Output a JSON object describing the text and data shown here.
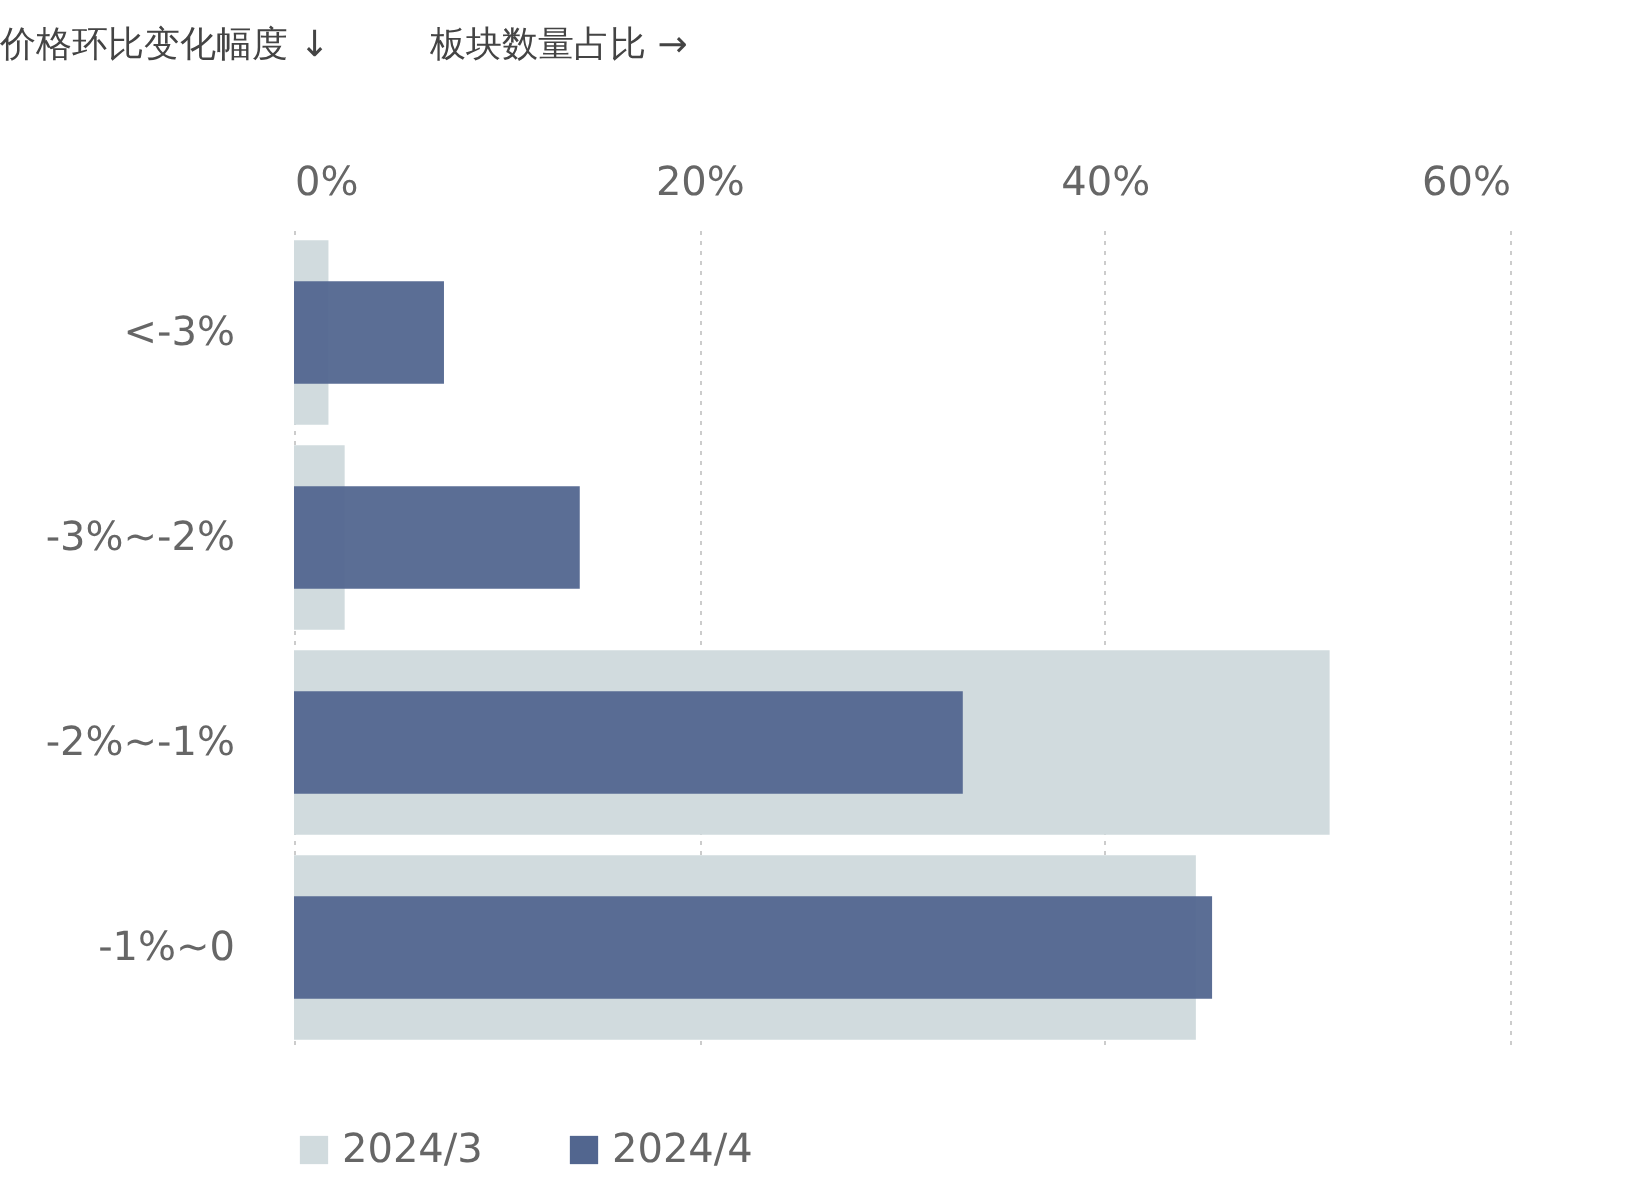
{
  "chart_data": {
    "type": "bar",
    "orientation": "horizontal",
    "xlabel": "板块数量占比 →",
    "ylabel": "价格环比变化幅度 ↓",
    "categories": [
      "<-3%",
      "-3%~-2%",
      "-2%~-1%",
      "-1%~0"
    ],
    "series": [
      {
        "name": "2024/3",
        "color": "#d1dbde",
        "values": [
          1.7,
          2.5,
          51.1,
          44.5
        ]
      },
      {
        "name": "2024/4",
        "color": "#52668f",
        "values": [
          7.4,
          14.1,
          33.0,
          45.3
        ]
      }
    ],
    "xlim": [
      0,
      60
    ],
    "xticks": [
      {
        "value": 0,
        "label": "0%"
      },
      {
        "value": 20,
        "label": "20%"
      },
      {
        "value": 40,
        "label": "40%"
      },
      {
        "value": 60,
        "label": "60%"
      }
    ],
    "grid": "x",
    "legend": "bottom"
  }
}
